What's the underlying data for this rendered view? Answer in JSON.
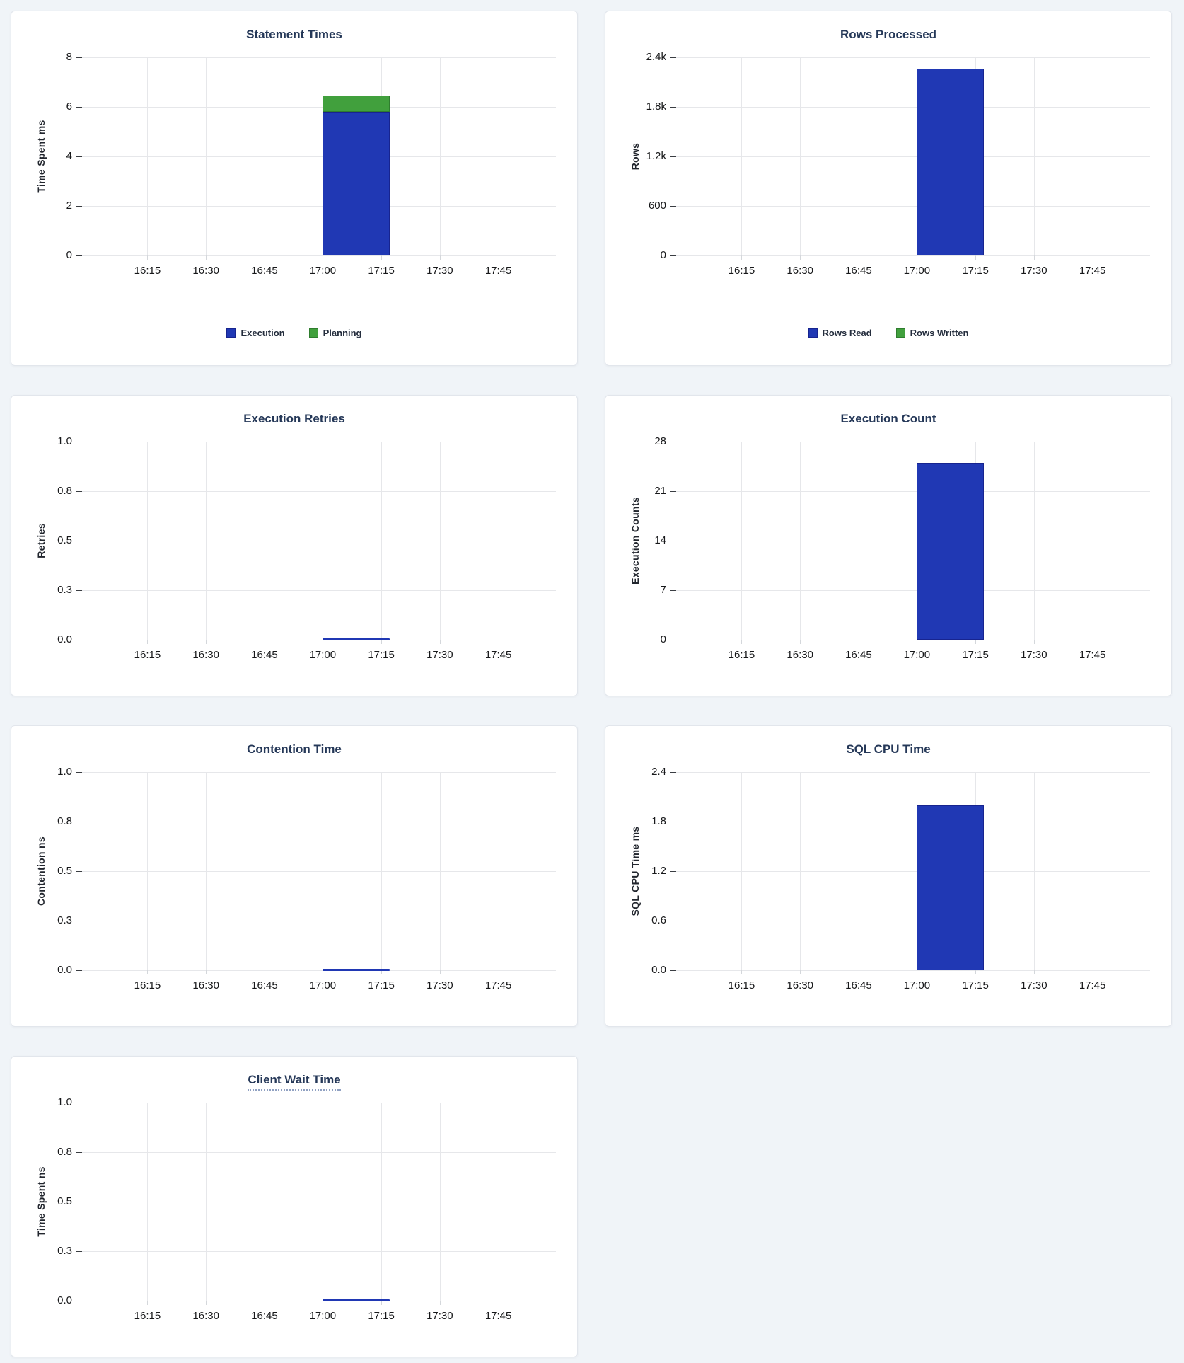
{
  "page": {
    "background_color": "#f0f4f8",
    "card_background": "#ffffff",
    "title_color": "#253858"
  },
  "colors": {
    "bar_blue": "#2038b4",
    "bar_blue_stroke": "#17248f",
    "bar_green": "#41a03d",
    "bar_green_stroke": "#2f7d2e"
  },
  "chart_data": [
    {
      "id": "statement-times",
      "type": "bar",
      "title": "Statement Times",
      "title_tooltip_underline": false,
      "xlabel": "",
      "ylabel": "Time Spent ms",
      "ylim": [
        0,
        8
      ],
      "yticks": [
        "8",
        "6",
        "4",
        "2",
        "0"
      ],
      "xticks": [
        "16:15",
        "16:30",
        "16:45",
        "17:00",
        "17:15",
        "17:30",
        "17:45"
      ],
      "grid": true,
      "stacked": true,
      "bar_interval": [
        "17:00",
        "17:17"
      ],
      "series": [
        {
          "name": "Execution",
          "value": 5.8,
          "color": "#2038b4",
          "stroke": "#17248f"
        },
        {
          "name": "Planning",
          "value": 0.65,
          "color": "#41a03d",
          "stroke": "#2f7d2e"
        }
      ],
      "legend_position": "bottom",
      "legend": [
        {
          "label": "Execution",
          "color": "#2038b4",
          "stroke": "#17248f"
        },
        {
          "label": "Planning",
          "color": "#41a03d",
          "stroke": "#2f7d2e"
        }
      ]
    },
    {
      "id": "rows-processed",
      "type": "bar",
      "title": "Rows Processed",
      "title_tooltip_underline": false,
      "xlabel": "",
      "ylabel": "Rows",
      "ylim": [
        0,
        2400
      ],
      "yticks": [
        "2.4k",
        "1.8k",
        "1.2k",
        "600",
        "0"
      ],
      "xticks": [
        "16:15",
        "16:30",
        "16:45",
        "17:00",
        "17:15",
        "17:30",
        "17:45"
      ],
      "grid": true,
      "stacked": true,
      "bar_interval": [
        "17:00",
        "17:17"
      ],
      "series": [
        {
          "name": "Rows Read",
          "value": 2260,
          "color": "#2038b4",
          "stroke": "#17248f"
        },
        {
          "name": "Rows Written",
          "value": 0,
          "color": "#41a03d",
          "stroke": "#2f7d2e"
        }
      ],
      "legend_position": "bottom",
      "legend": [
        {
          "label": "Rows Read",
          "color": "#2038b4",
          "stroke": "#17248f"
        },
        {
          "label": "Rows Written",
          "color": "#41a03d",
          "stroke": "#2f7d2e"
        }
      ]
    },
    {
      "id": "execution-retries",
      "type": "bar",
      "title": "Execution Retries",
      "title_tooltip_underline": false,
      "xlabel": "",
      "ylabel": "Retries",
      "ylim": [
        0,
        1
      ],
      "yticks": [
        "1.0",
        "0.8",
        "0.5",
        "0.3",
        "0.0"
      ],
      "xticks": [
        "16:15",
        "16:30",
        "16:45",
        "17:00",
        "17:15",
        "17:30",
        "17:45"
      ],
      "grid": true,
      "stacked": false,
      "bar_interval": [
        "17:00",
        "17:17"
      ],
      "series": [
        {
          "name": "Retries",
          "value": 0,
          "color": "#2038b4",
          "stroke": "#17248f"
        }
      ],
      "legend_position": "none",
      "legend": []
    },
    {
      "id": "execution-count",
      "type": "bar",
      "title": "Execution Count",
      "title_tooltip_underline": false,
      "xlabel": "",
      "ylabel": "Execution Counts",
      "ylim": [
        0,
        28
      ],
      "yticks": [
        "28",
        "21",
        "14",
        "7",
        "0"
      ],
      "xticks": [
        "16:15",
        "16:30",
        "16:45",
        "17:00",
        "17:15",
        "17:30",
        "17:45"
      ],
      "grid": true,
      "stacked": false,
      "bar_interval": [
        "17:00",
        "17:17"
      ],
      "series": [
        {
          "name": "Execution Count",
          "value": 25,
          "color": "#2038b4",
          "stroke": "#17248f"
        }
      ],
      "legend_position": "none",
      "legend": []
    },
    {
      "id": "contention-time",
      "type": "bar",
      "title": "Contention Time",
      "title_tooltip_underline": false,
      "xlabel": "",
      "ylabel": "Contention ns",
      "ylim": [
        0,
        1
      ],
      "yticks": [
        "1.0",
        "0.8",
        "0.5",
        "0.3",
        "0.0"
      ],
      "xticks": [
        "16:15",
        "16:30",
        "16:45",
        "17:00",
        "17:15",
        "17:30",
        "17:45"
      ],
      "grid": true,
      "stacked": false,
      "bar_interval": [
        "17:00",
        "17:17"
      ],
      "series": [
        {
          "name": "Contention",
          "value": 0,
          "color": "#2038b4",
          "stroke": "#17248f"
        }
      ],
      "legend_position": "none",
      "legend": []
    },
    {
      "id": "sql-cpu-time",
      "type": "bar",
      "title": "SQL CPU Time",
      "title_tooltip_underline": false,
      "xlabel": "",
      "ylabel": "SQL CPU Time ms",
      "ylim": [
        0,
        2.4
      ],
      "yticks": [
        "2.4",
        "1.8",
        "1.2",
        "0.6",
        "0.0"
      ],
      "xticks": [
        "16:15",
        "16:30",
        "16:45",
        "17:00",
        "17:15",
        "17:30",
        "17:45"
      ],
      "grid": true,
      "stacked": false,
      "bar_interval": [
        "17:00",
        "17:17"
      ],
      "series": [
        {
          "name": "SQL CPU Time",
          "value": 2.0,
          "color": "#2038b4",
          "stroke": "#17248f"
        }
      ],
      "legend_position": "none",
      "legend": []
    },
    {
      "id": "client-wait-time",
      "type": "bar",
      "title": "Client Wait Time",
      "title_tooltip_underline": true,
      "xlabel": "",
      "ylabel": "Time Spent ns",
      "ylim": [
        0,
        1
      ],
      "yticks": [
        "1.0",
        "0.8",
        "0.5",
        "0.3",
        "0.0"
      ],
      "xticks": [
        "16:15",
        "16:30",
        "16:45",
        "17:00",
        "17:15",
        "17:30",
        "17:45"
      ],
      "grid": true,
      "stacked": false,
      "bar_interval": [
        "17:00",
        "17:17"
      ],
      "series": [
        {
          "name": "Client Wait",
          "value": 0,
          "color": "#2038b4",
          "stroke": "#17248f"
        }
      ],
      "legend_position": "none",
      "legend": []
    }
  ]
}
